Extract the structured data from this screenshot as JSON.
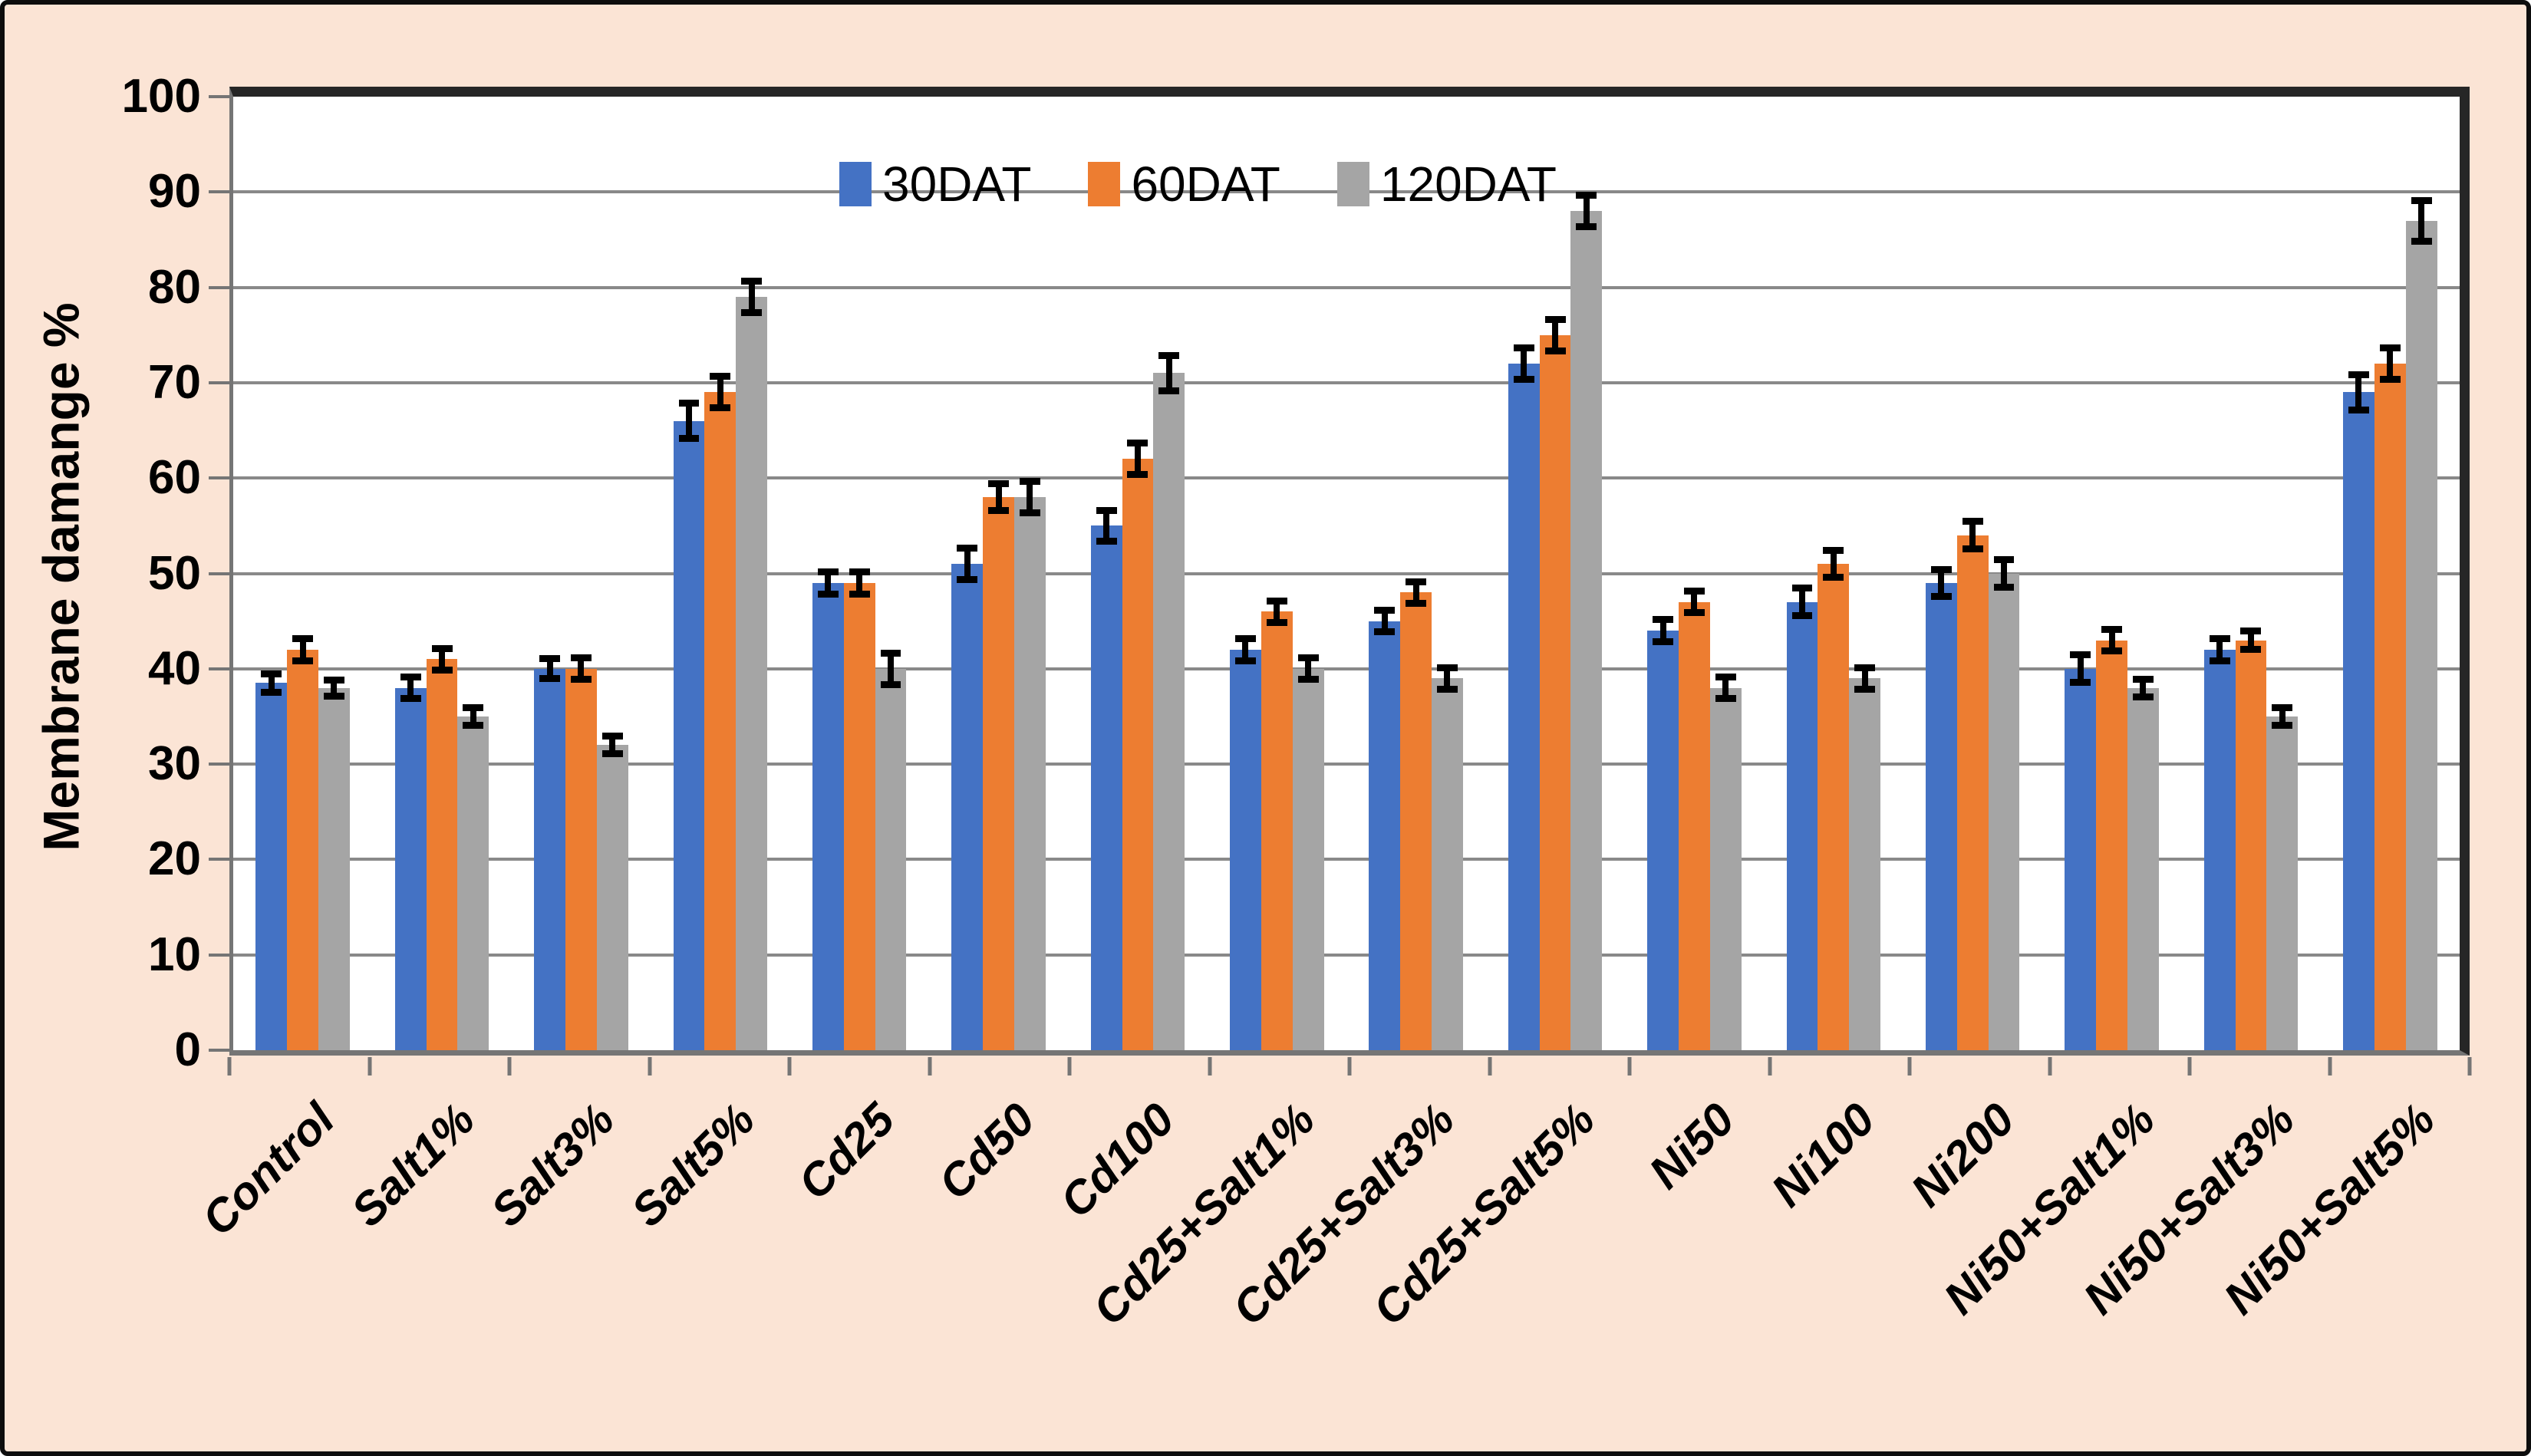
{
  "chart_data": {
    "type": "bar",
    "title": "",
    "ylabel": "Membrane damange %",
    "xlabel": "",
    "ylim": [
      0,
      100
    ],
    "ytick_step": 10,
    "yticks": [
      0,
      10,
      20,
      30,
      40,
      50,
      60,
      70,
      80,
      90,
      100
    ],
    "grid": "horizontal",
    "legend_position": "top-center",
    "background_color": "#FBE4D5",
    "plot_background_color": "#FFFFFF",
    "gridline_color": "#898989",
    "error_bar_color": "#000000",
    "categories": [
      "Control",
      "Salt1%",
      "Salt3%",
      "Salt5%",
      "Cd25",
      "Cd50",
      "Cd100",
      "Cd25+Salt1%",
      "Cd25+Salt3%",
      "Cd25+Salt5%",
      "Ni50",
      "Ni100",
      "Ni200",
      "Ni50+Salt1%",
      "Ni50+Salt3%",
      "Ni50+Salt5%"
    ],
    "series": [
      {
        "name": "30DAT",
        "color": "#4472C4",
        "values": [
          38.5,
          38,
          40,
          66,
          49,
          51,
          55,
          42,
          45,
          72,
          44,
          47,
          49,
          40,
          42,
          69
        ],
        "errors": [
          1.3,
          1.5,
          1.4,
          2.2,
          1.5,
          2,
          2,
          1.5,
          1.5,
          2,
          1.5,
          1.8,
          1.8,
          1.8,
          1.5,
          2.2
        ]
      },
      {
        "name": "60DAT",
        "color": "#ED7D31",
        "values": [
          42,
          41,
          40,
          69,
          49,
          58,
          62,
          46,
          48,
          75,
          47,
          51,
          54,
          43,
          43,
          72
        ],
        "errors": [
          1.5,
          1.5,
          1.5,
          2,
          1.5,
          1.8,
          2,
          1.5,
          1.5,
          2,
          1.5,
          1.8,
          1.8,
          1.5,
          1.3,
          2
        ]
      },
      {
        "name": "120DAT",
        "color": "#A5A5A5",
        "values": [
          38,
          35,
          32,
          79,
          40,
          58,
          71,
          40,
          39,
          88,
          38,
          39,
          50,
          38,
          35,
          87
        ],
        "errors": [
          1.2,
          1.3,
          1.3,
          2,
          2,
          2,
          2.2,
          1.5,
          1.5,
          2,
          1.5,
          1.5,
          1.8,
          1.3,
          1.3,
          2.5
        ]
      }
    ]
  }
}
